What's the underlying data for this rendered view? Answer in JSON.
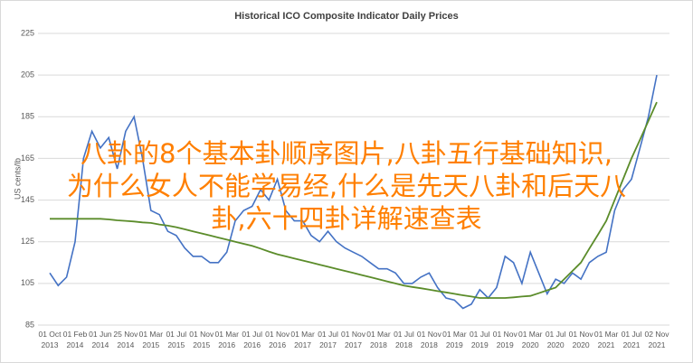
{
  "chart_data": {
    "type": "line",
    "title": "Historical ICO Composite Indicator Daily Prices",
    "y_label": "US cents/lb",
    "categories": [
      "01 Oct 2013",
      null,
      null,
      "01 Feb 2014",
      null,
      null,
      "01 Jun 2014",
      null,
      null,
      "25 Nov 2014",
      null,
      null,
      "01 Mar 2015",
      null,
      null,
      "01 Jul 2015",
      null,
      null,
      "01 Nov 2015",
      null,
      null,
      "01 Mar 2016",
      null,
      null,
      "01 Jul 2016",
      null,
      null,
      "01 Nov 2016",
      null,
      null,
      "01 Mar 2017",
      null,
      null,
      "01 Jul 2017",
      null,
      null,
      "01 Nov 2017",
      null,
      null,
      "01 Mar 2018",
      null,
      null,
      "01 Jul 2018",
      null,
      null,
      "01 Nov 2018",
      null,
      null,
      "01 Mar 2019",
      null,
      null,
      "01 Jul 2019",
      null,
      null,
      "01 Nov 2019",
      null,
      null,
      "01 Mar 2020",
      null,
      null,
      "01 Jul 2020",
      null,
      null,
      "01 Nov 2020",
      null,
      null,
      "01 Mar 2021",
      null,
      null,
      "01 Jul 2021",
      null,
      null,
      "02 Nov 2021"
    ],
    "series": [
      {
        "color": "#4472c4",
        "values": [
          110,
          104,
          108,
          125,
          165,
          178,
          170,
          175,
          160,
          178,
          185,
          165,
          140,
          138,
          130,
          128,
          122,
          118,
          118,
          115,
          115,
          120,
          135,
          140,
          142,
          150,
          145,
          155,
          140,
          135,
          135,
          128,
          125,
          130,
          125,
          122,
          120,
          118,
          115,
          112,
          112,
          110,
          105,
          105,
          108,
          110,
          103,
          98,
          97,
          93,
          95,
          102,
          98,
          103,
          118,
          115,
          105,
          120,
          110,
          100,
          107,
          105,
          110,
          107,
          115,
          118,
          120,
          140,
          150,
          155,
          170,
          185,
          205
        ]
      },
      {
        "color": "#5b8c2a",
        "values": [
          136,
          136,
          136,
          136,
          136,
          136,
          136,
          135.7,
          135.3,
          135,
          134.7,
          134.3,
          134,
          133.3,
          132.7,
          132,
          131,
          130,
          129,
          128,
          127,
          126,
          125,
          124,
          123,
          121.7,
          120.3,
          119,
          118,
          117,
          116,
          115,
          114,
          113,
          112,
          111,
          110,
          109,
          108,
          107,
          106,
          105,
          104,
          103.3,
          102.7,
          102,
          101.3,
          100.7,
          100,
          99.3,
          98.7,
          98,
          98,
          98,
          98,
          98.3,
          98.7,
          99,
          100.3,
          101.7,
          103,
          107,
          111,
          115,
          121.7,
          128.3,
          135,
          145,
          155,
          165,
          174,
          183,
          192
        ]
      }
    ],
    "ylim": [
      85,
      225
    ],
    "yticks": [
      85,
      105,
      125,
      145,
      165,
      185,
      205,
      225
    ],
    "grid": true
  },
  "overlay": {
    "color": "#ff7f00",
    "lines": [
      "八卦的8个基本卦顺序图片,八卦五行基础知识,",
      "为什么女人不能学易经,什么是先天八卦和后天八",
      "卦,六十四卦详解速查表"
    ]
  }
}
